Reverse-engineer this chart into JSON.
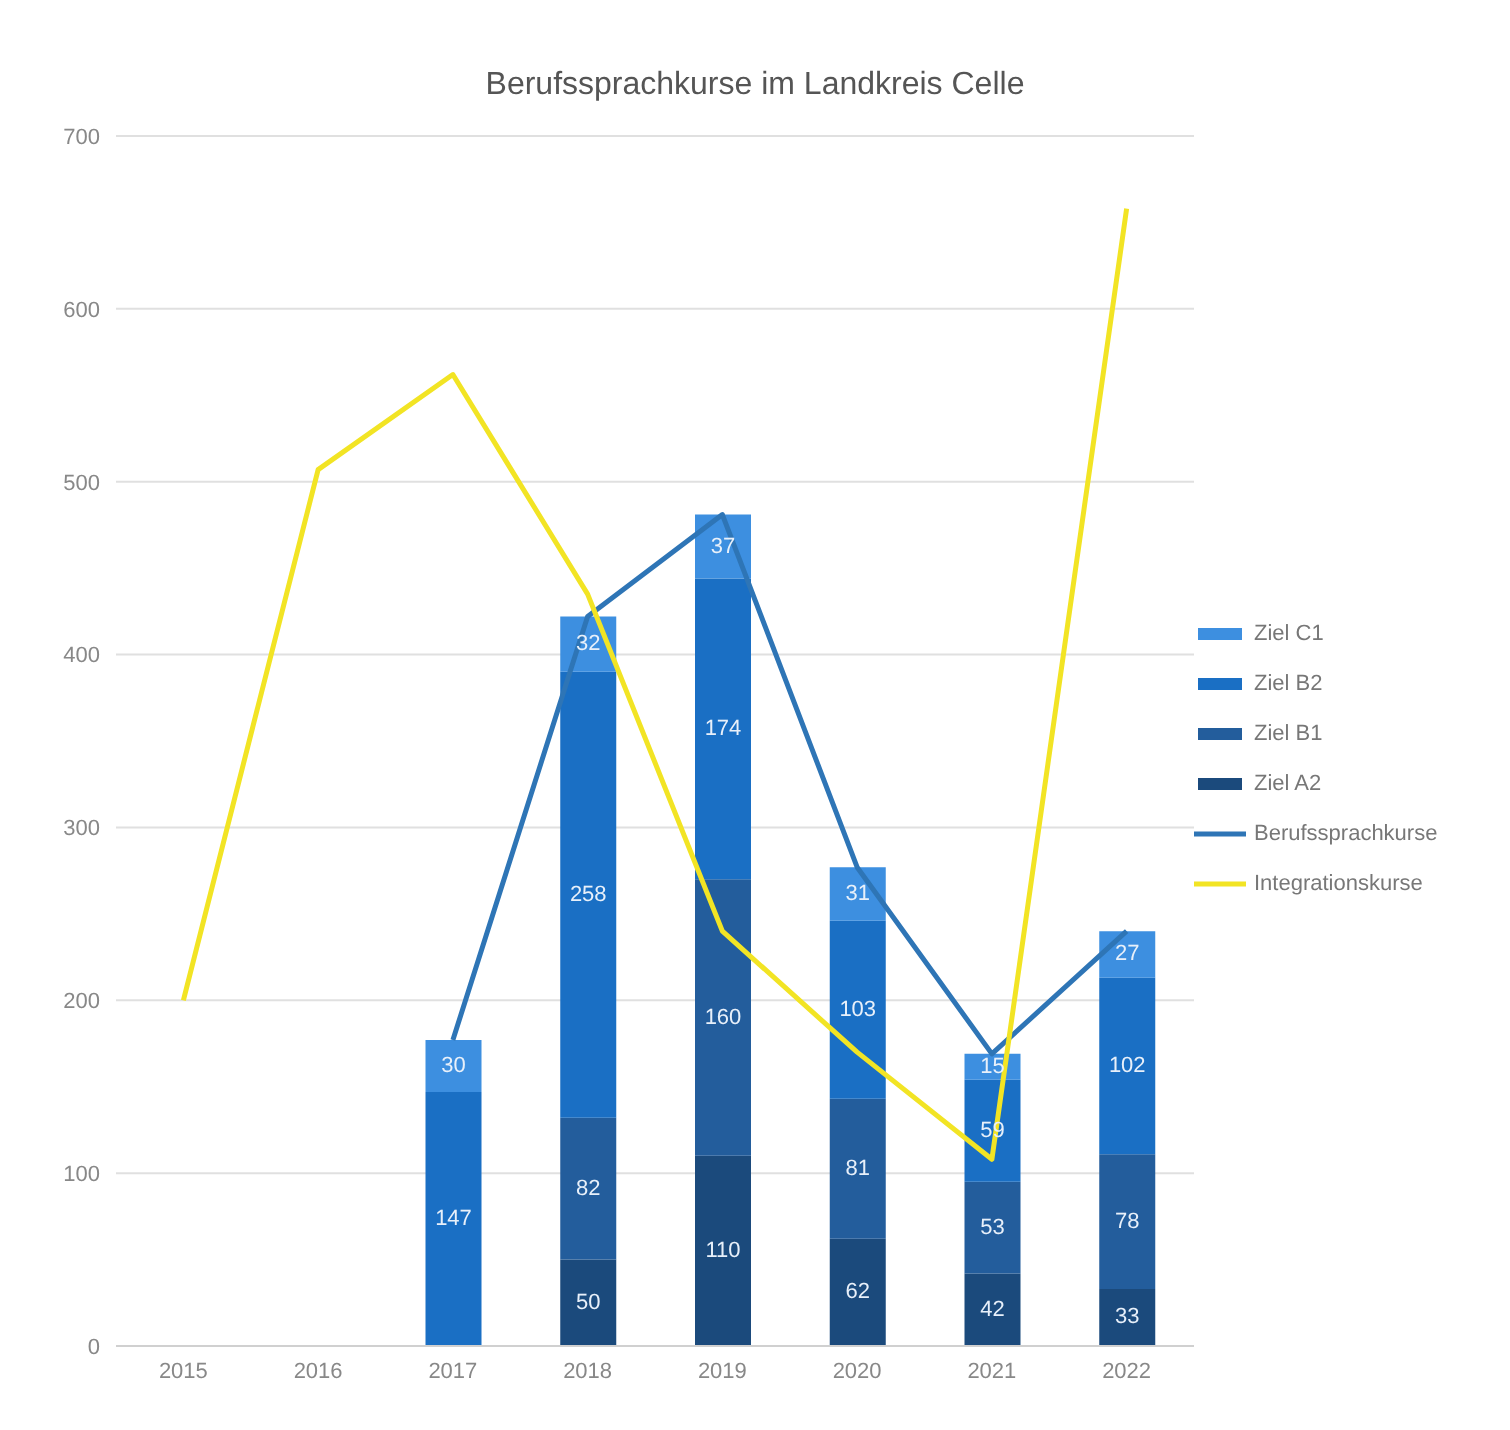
{
  "chart_data": {
    "type": "bar",
    "title": "Berufssprachkurse im Landkreis Celle",
    "categories": [
      "2015",
      "2016",
      "2017",
      "2018",
      "2019",
      "2020",
      "2021",
      "2022"
    ],
    "stacked": true,
    "series": [
      {
        "name": "Ziel A2",
        "color": "#1b4a7c",
        "values": [
          null,
          null,
          null,
          50,
          110,
          62,
          42,
          33
        ],
        "value_labels": [
          null,
          null,
          null,
          "50",
          "110",
          "62",
          "42",
          "33"
        ]
      },
      {
        "name": "Ziel B1",
        "color": "#235d9c",
        "values": [
          null,
          null,
          null,
          82,
          160,
          81,
          53,
          78
        ],
        "value_labels": [
          null,
          null,
          null,
          "82",
          "160",
          "81",
          "53",
          "78"
        ]
      },
      {
        "name": "Ziel B2",
        "color": "#1a6fc4",
        "values": [
          null,
          null,
          147,
          258,
          174,
          103,
          59,
          102
        ],
        "value_labels": [
          null,
          null,
          "147",
          "258",
          "174",
          "103",
          "59",
          "102"
        ]
      },
      {
        "name": "Ziel C1",
        "color": "#3d8fe0",
        "values": [
          null,
          null,
          30,
          32,
          37,
          31,
          15,
          27
        ],
        "value_labels": [
          null,
          null,
          "30",
          "32",
          "37",
          "31",
          "15",
          "27"
        ]
      },
      {
        "name": "Berufssprachkurse",
        "type": "line",
        "color": "#2e75b6",
        "values": [
          null,
          null,
          177,
          422,
          481,
          277,
          169,
          240
        ]
      },
      {
        "name": "Integrationskurse",
        "type": "line",
        "color": "#f2e424",
        "values": [
          200,
          507,
          562,
          435,
          240,
          170,
          108,
          658
        ]
      }
    ],
    "ylim": [
      0,
      700
    ],
    "yticks": [
      0,
      100,
      200,
      300,
      400,
      500,
      600,
      700
    ],
    "grid": "y",
    "legend": "right",
    "marker": "none"
  }
}
